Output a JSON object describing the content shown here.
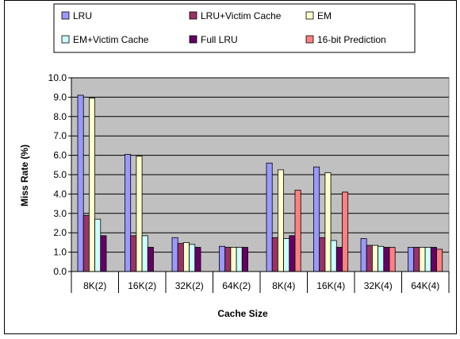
{
  "chart_data": {
    "type": "bar",
    "title": "",
    "xlabel": "Cache Size",
    "ylabel": "Miss Rate (%)",
    "ylim": [
      0,
      10
    ],
    "yticks": [
      "0.0",
      "1.0",
      "2.0",
      "3.0",
      "4.0",
      "5.0",
      "6.0",
      "7.0",
      "8.0",
      "9.0",
      "10.0"
    ],
    "grid": true,
    "legend_position": "top",
    "categories": [
      "8K(2)",
      "16K(2)",
      "32K(2)",
      "64K(2)",
      "8K(4)",
      "16K(4)",
      "32K(4)",
      "64K(4)"
    ],
    "series": [
      {
        "name": "LRU",
        "color": "#9999ff",
        "values": [
          9.1,
          6.05,
          1.75,
          1.3,
          5.6,
          5.4,
          1.7,
          1.25
        ]
      },
      {
        "name": "LRU+Victim Cache",
        "color": "#993366",
        "values": [
          2.9,
          1.85,
          1.45,
          1.25,
          1.75,
          1.75,
          1.35,
          1.25
        ]
      },
      {
        "name": "EM",
        "color": "#ffffcc",
        "values": [
          8.95,
          5.95,
          1.5,
          1.25,
          5.25,
          5.1,
          1.35,
          1.25
        ]
      },
      {
        "name": "EM+Victim Cache",
        "color": "#ccffff",
        "values": [
          2.7,
          1.85,
          1.4,
          1.25,
          1.7,
          1.6,
          1.3,
          1.25
        ]
      },
      {
        "name": "Full LRU",
        "color": "#660066",
        "values": [
          1.85,
          1.25,
          1.25,
          1.25,
          1.85,
          1.25,
          1.25,
          1.25
        ]
      },
      {
        "name": "16-bit Prediction",
        "color": "#ff8080",
        "values": [
          0,
          0,
          0,
          0,
          4.2,
          4.1,
          1.25,
          1.15
        ]
      }
    ]
  }
}
